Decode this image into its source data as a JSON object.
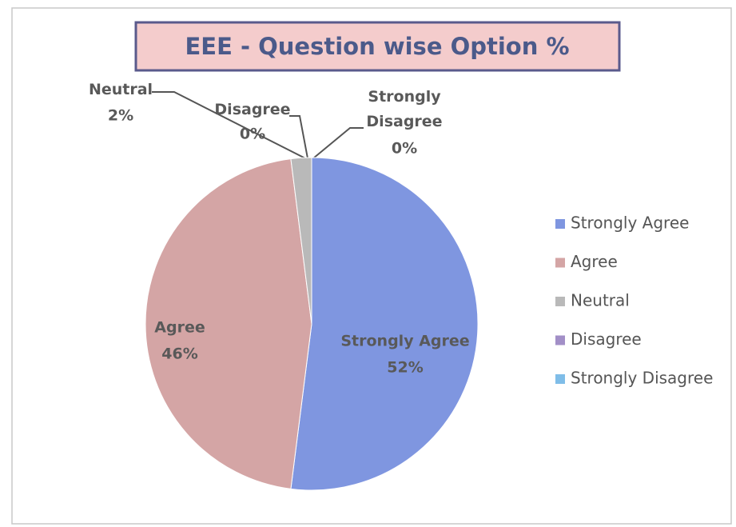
{
  "chart_data": {
    "type": "pie",
    "title": "EEE - Question wise Option %",
    "categories": [
      "Strongly Agree",
      "Agree",
      "Neutral",
      "Disagree",
      "Strongly Disagree"
    ],
    "values": [
      52,
      46,
      2,
      0,
      0
    ],
    "value_labels": [
      "52%",
      "46%",
      "2%",
      "0%",
      "0%"
    ],
    "colors": [
      "#7f96e0",
      "#d4a5a5",
      "#b9b9b9",
      "#a28fc7",
      "#7fbde8"
    ],
    "legend": "right"
  }
}
